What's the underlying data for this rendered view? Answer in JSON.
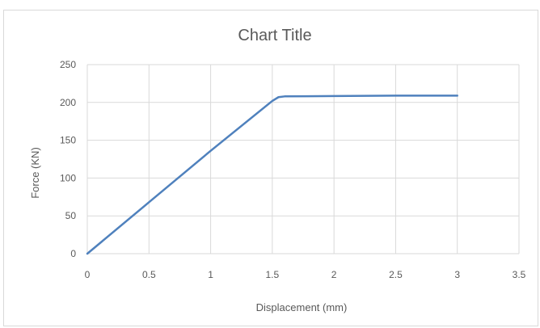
{
  "chart_data": {
    "type": "line",
    "title": "Chart Title",
    "xlabel": "Displacement (mm)",
    "ylabel": "Force (KN)",
    "xlim": [
      0,
      3.5
    ],
    "ylim": [
      0,
      250
    ],
    "x_ticks": [
      "0",
      "0.5",
      "1",
      "1.5",
      "2",
      "2.5",
      "3",
      "3.5"
    ],
    "y_ticks": [
      "0",
      "50",
      "100",
      "150",
      "200",
      "250"
    ],
    "grid": true,
    "legend": "none",
    "series": [
      {
        "color": "#4f81bd",
        "x": [
          0,
          0.5,
          1,
          1.5,
          1.55,
          1.6,
          2,
          2.5,
          3
        ],
        "y": [
          0,
          68,
          136,
          202,
          207,
          208,
          208.5,
          209,
          209
        ]
      }
    ]
  }
}
